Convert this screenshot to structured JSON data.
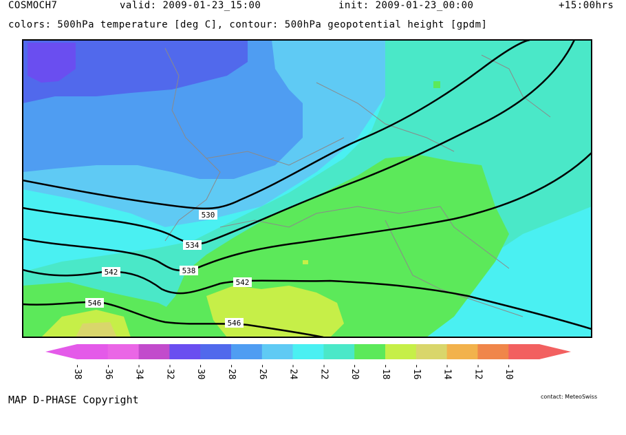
{
  "header": {
    "model": "COSMOCH7",
    "valid": "valid: 2009-01-23_15:00",
    "init": "init: 2009-01-23_00:00",
    "lead": "+15:00hrs",
    "colors_line": "colors: 500hPa temperature [deg C], contour: 500hPa geopotential height [gpdm]"
  },
  "legend": {
    "colors": [
      "#e45ae9",
      "#ea66e6",
      "#c24bcc",
      "#6a4ef0",
      "#5169ec",
      "#4f9df2",
      "#5fcaf4",
      "#4af0f2",
      "#4ae8c8",
      "#5ce95a",
      "#c6ef48",
      "#d9d66b",
      "#f2b24c",
      "#f0864a",
      "#f26060"
    ],
    "labels": [
      "-38",
      "-36",
      "-34",
      "-32",
      "-30",
      "-28",
      "-26",
      "-24",
      "-22",
      "-20",
      "-18",
      "-16",
      "-14",
      "-12",
      "-10"
    ]
  },
  "contours": [
    {
      "value": "530"
    },
    {
      "value": "534"
    },
    {
      "value": "538"
    },
    {
      "value": "542"
    },
    {
      "value": "542"
    },
    {
      "value": "546"
    },
    {
      "value": "546"
    }
  ],
  "footer": {
    "copyright": "MAP D-PHASE Copyright",
    "contact": "contact: MeteoSwiss"
  }
}
